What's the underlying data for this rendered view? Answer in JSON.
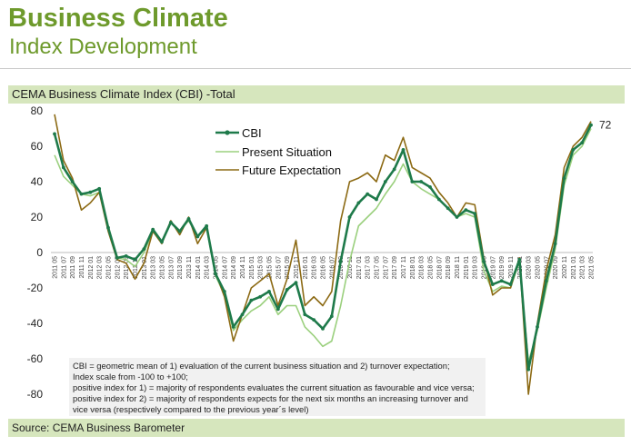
{
  "title": "Business Climate",
  "subtitle": "Index Development",
  "chart_header": "CEMA Business Climate Index (CBI) -Total",
  "source": "Source: CEMA Business Barometer",
  "notes": [
    "CBI = geometric mean of 1) evaluation of the current business situation and 2) turnover expectation;",
    "Index scale from -100 to +100;",
    "positive index for 1) = majority of respondents evaluates the current situation as favourable and vice versa;",
    "positive index for 2) = majority of respondents expects for the next six months an increasing turnover and",
    "vice versa (respectively compared to the previous year´s level)"
  ],
  "colors": {
    "cbi": "#1e7a4a",
    "present": "#9bd07e",
    "future": "#8c6a14",
    "header_bg": "#d6e6bd",
    "title": "#6e9a2c"
  },
  "chart_data": {
    "type": "line",
    "ylim": [
      -80,
      80
    ],
    "yticks": [
      80,
      60,
      40,
      20,
      0,
      -20,
      -40,
      -60,
      -80
    ],
    "x": [
      "2011 05",
      "2011 07",
      "2011 09",
      "2011 11",
      "2012 01",
      "2012 03",
      "2012 05",
      "2012 07",
      "2012 09",
      "2012 11",
      "2013 01",
      "2013 03",
      "2013 05",
      "2013 07",
      "2013 09",
      "2013 11",
      "2014 01",
      "2014 03",
      "2014 05",
      "2014 07",
      "2014 09",
      "2014 11",
      "2015 01",
      "2015 03",
      "2015 05",
      "2015 07",
      "2015 09",
      "2015 11",
      "2016 01",
      "2016 03",
      "2016 05",
      "2016 07",
      "2016 09",
      "2016 11",
      "2017 01",
      "2017 03",
      "2017 05",
      "2017 07",
      "2017 09",
      "2017 11",
      "2018 01",
      "2018 03",
      "2018 05",
      "2018 07",
      "2018 09",
      "2018 11",
      "2019 01",
      "2019 03",
      "2019 05",
      "2019 07",
      "2019 09",
      "2019 11",
      "2020 01",
      "2020 03",
      "2020 05",
      "2020 07",
      "2020 09",
      "2020 11",
      "2021 01",
      "2021 03",
      "2021 05"
    ],
    "series": [
      {
        "name": "CBI",
        "values": [
          67,
          48,
          40,
          33,
          34,
          36,
          14,
          -3,
          -2,
          -4,
          2,
          13,
          6,
          17,
          12,
          19,
          9,
          15,
          -12,
          -22,
          -42,
          -35,
          -27,
          -25,
          -22,
          -32,
          -21,
          -17,
          -35,
          -38,
          -43,
          -36,
          -5,
          20,
          28,
          33,
          30,
          40,
          47,
          58,
          40,
          40,
          37,
          30,
          25,
          20,
          24,
          22,
          -5,
          -18,
          -16,
          -18,
          -4,
          -66,
          -42,
          -16,
          5,
          42,
          58,
          62,
          72
        ]
      },
      {
        "name": "Present Situation",
        "values": [
          55,
          43,
          38,
          33,
          32,
          34,
          15,
          -3,
          -4,
          -8,
          0,
          12,
          6,
          17,
          12,
          18,
          9,
          14,
          -13,
          -24,
          -44,
          -38,
          -33,
          -30,
          -25,
          -35,
          -30,
          -30,
          -42,
          -47,
          -53,
          -50,
          -30,
          -5,
          15,
          20,
          25,
          33,
          40,
          50,
          40,
          36,
          33,
          30,
          25,
          20,
          22,
          20,
          -10,
          -22,
          -19,
          -20,
          -5,
          -62,
          -44,
          -20,
          2,
          38,
          55,
          60,
          70
        ]
      },
      {
        "name": "Future Expectation",
        "values": [
          78,
          52,
          42,
          24,
          28,
          34,
          12,
          -4,
          -6,
          -15,
          -6,
          12,
          5,
          18,
          10,
          20,
          5,
          14,
          -11,
          -25,
          -50,
          -35,
          -20,
          -16,
          -12,
          -30,
          -15,
          7,
          -30,
          -25,
          -30,
          -22,
          18,
          40,
          42,
          45,
          40,
          55,
          52,
          65,
          48,
          45,
          42,
          34,
          28,
          20,
          28,
          27,
          -3,
          -24,
          -20,
          -20,
          -3,
          -80,
          -40,
          -10,
          10,
          48,
          60,
          65,
          74
        ]
      }
    ],
    "end_label": "72"
  }
}
